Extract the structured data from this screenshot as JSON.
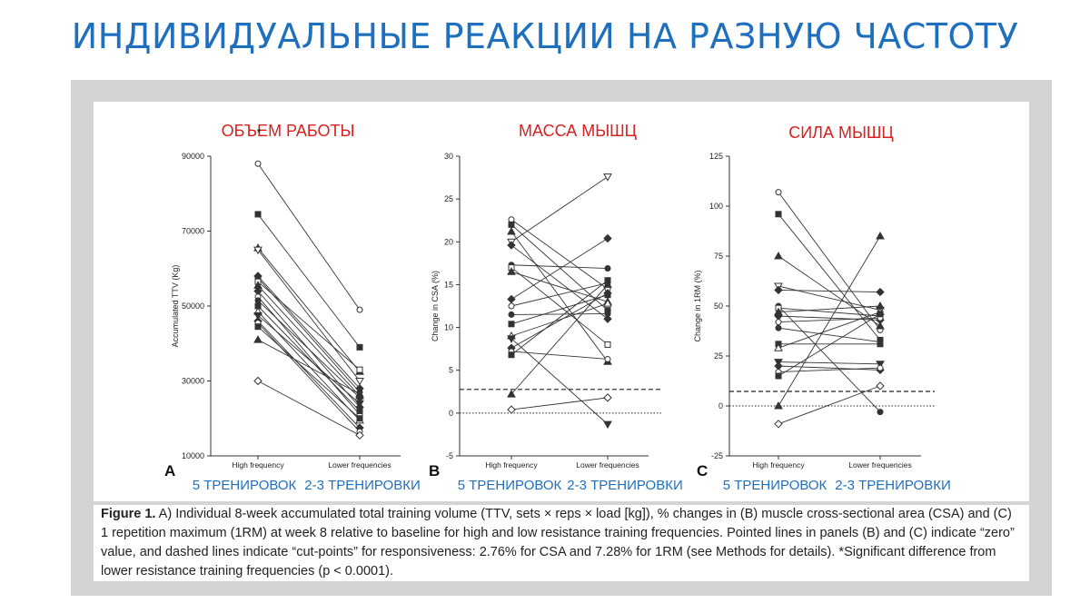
{
  "slide_title": "ИНДИВИДУАЛЬНЫЕ РЕАКЦИИ НА РАЗНУЮ ЧАСТОТУ",
  "caption": {
    "label": "Figure 1.",
    "text": "A) Individual 8-week accumulated total training volume (TTV, sets × reps × load [kg]), % changes in (B) muscle cross-sectional area (CSA) and (C) 1 repetition maximum (1RM) at week 8 relative to baseline for high and low resistance training frequencies. Pointed lines in panels (B) and (C) indicate “zero” value, and dashed lines indicate “cut-points” for responsiveness: 2.76% for CSA and 7.28% for 1RM (see Methods for details). *Significant difference from lower resistance training frequencies (p < 0.0001)."
  },
  "colors": {
    "title": "#1f6fbf",
    "red_label": "#d9201f",
    "blue_label": "#1f6fbf",
    "line": "#333333"
  },
  "chart_data": [
    {
      "type": "line",
      "panel": "A",
      "overlay_title": "ОБЪЕМ РАБОТЫ",
      "significance_marker": "*",
      "categories": [
        "High frequency",
        "Lower frequencies"
      ],
      "overlay_categories": [
        "5 ТРЕНИРОВОК",
        "2-3 ТРЕНИРОВКИ"
      ],
      "ylabel": "Accumulated TTV (Kg)",
      "ylim": [
        10000,
        90000
      ],
      "yticks": [
        10000,
        30000,
        50000,
        70000,
        90000
      ],
      "reference_lines": [],
      "series": [
        {
          "values": [
            88000,
            49000
          ]
        },
        {
          "values": [
            74500,
            39000
          ]
        },
        {
          "values": [
            65500,
            32500
          ]
        },
        {
          "values": [
            65000,
            30000
          ]
        },
        {
          "values": [
            58000,
            28000
          ]
        },
        {
          "values": [
            57500,
            27000
          ]
        },
        {
          "values": [
            56500,
            33000
          ]
        },
        {
          "values": [
            55500,
            26000
          ]
        },
        {
          "values": [
            54000,
            23000
          ]
        },
        {
          "values": [
            52500,
            21000
          ]
        },
        {
          "values": [
            51500,
            25500
          ]
        },
        {
          "values": [
            50000,
            22000
          ]
        },
        {
          "values": [
            48500,
            19500
          ]
        },
        {
          "values": [
            47500,
            24000
          ]
        },
        {
          "values": [
            46000,
            17500
          ]
        },
        {
          "values": [
            45500,
            16500
          ]
        },
        {
          "values": [
            44500,
            20000
          ]
        },
        {
          "values": [
            41000,
            26500
          ]
        },
        {
          "values": [
            30000,
            15500
          ]
        }
      ]
    },
    {
      "type": "line",
      "panel": "B",
      "overlay_title": "МАССА МЫШЦ",
      "categories": [
        "High frequency",
        "Lower  frequencies"
      ],
      "overlay_categories": [
        "5 ТРЕНИРОВОК",
        "2-3 ТРЕНИРОВКИ"
      ],
      "ylabel": "Change in CSA (%)",
      "ylim": [
        -5,
        30
      ],
      "yticks": [
        -5,
        0,
        5,
        10,
        15,
        20,
        25,
        30
      ],
      "reference_lines": [
        {
          "value": 0,
          "style": "dotted"
        },
        {
          "value": 2.76,
          "style": "dashed"
        }
      ],
      "series": [
        {
          "values": [
            22.6,
            14.5
          ]
        },
        {
          "values": [
            22.0,
            12.0
          ]
        },
        {
          "values": [
            21.2,
            6.0
          ]
        },
        {
          "values": [
            20.0,
            27.6
          ]
        },
        {
          "values": [
            19.6,
            11.0
          ]
        },
        {
          "values": [
            17.3,
            16.9
          ]
        },
        {
          "values": [
            17.0,
            8.0
          ]
        },
        {
          "values": [
            16.5,
            13.0
          ]
        },
        {
          "values": [
            13.3,
            20.4
          ]
        },
        {
          "values": [
            12.5,
            15.2
          ]
        },
        {
          "values": [
            11.5,
            11.6
          ]
        },
        {
          "values": [
            10.4,
            13.8
          ]
        },
        {
          "values": [
            9.0,
            12.8
          ]
        },
        {
          "values": [
            8.7,
            -1.3
          ]
        },
        {
          "values": [
            7.6,
            14.0
          ]
        },
        {
          "values": [
            7.2,
            6.3
          ]
        },
        {
          "values": [
            6.8,
            15.5
          ]
        },
        {
          "values": [
            2.2,
            15.0
          ]
        },
        {
          "values": [
            0.4,
            1.8
          ]
        }
      ]
    },
    {
      "type": "line",
      "panel": "C",
      "overlay_title": "СИЛА МЫШЦ",
      "categories": [
        "High frequency",
        "Lower  frequencies"
      ],
      "overlay_categories": [
        "5 ТРЕНИРОВОК",
        "2-3 ТРЕНИРОВКИ"
      ],
      "ylabel": "Change in 1RM  (%)",
      "ylim": [
        -25,
        125
      ],
      "yticks": [
        -25,
        0,
        25,
        50,
        75,
        100,
        125
      ],
      "reference_lines": [
        {
          "value": 0,
          "style": "dotted"
        },
        {
          "value": 7.28,
          "style": "dashed"
        }
      ],
      "series": [
        {
          "values": [
            107,
            38
          ]
        },
        {
          "values": [
            96,
            33
          ]
        },
        {
          "values": [
            75,
            40
          ]
        },
        {
          "values": [
            60,
            48
          ]
        },
        {
          "values": [
            58,
            57
          ]
        },
        {
          "values": [
            50,
            -3
          ]
        },
        {
          "values": [
            49,
            45
          ]
        },
        {
          "values": [
            47,
            50
          ]
        },
        {
          "values": [
            45,
            43
          ]
        },
        {
          "values": [
            42,
            44
          ]
        },
        {
          "values": [
            39,
            32
          ]
        },
        {
          "values": [
            31,
            31
          ]
        },
        {
          "values": [
            29,
            47
          ]
        },
        {
          "values": [
            22,
            21
          ]
        },
        {
          "values": [
            20,
            18
          ]
        },
        {
          "values": [
            17,
            19
          ]
        },
        {
          "values": [
            15,
            46
          ]
        },
        {
          "values": [
            0,
            85
          ]
        },
        {
          "values": [
            -9,
            10
          ]
        }
      ]
    }
  ]
}
